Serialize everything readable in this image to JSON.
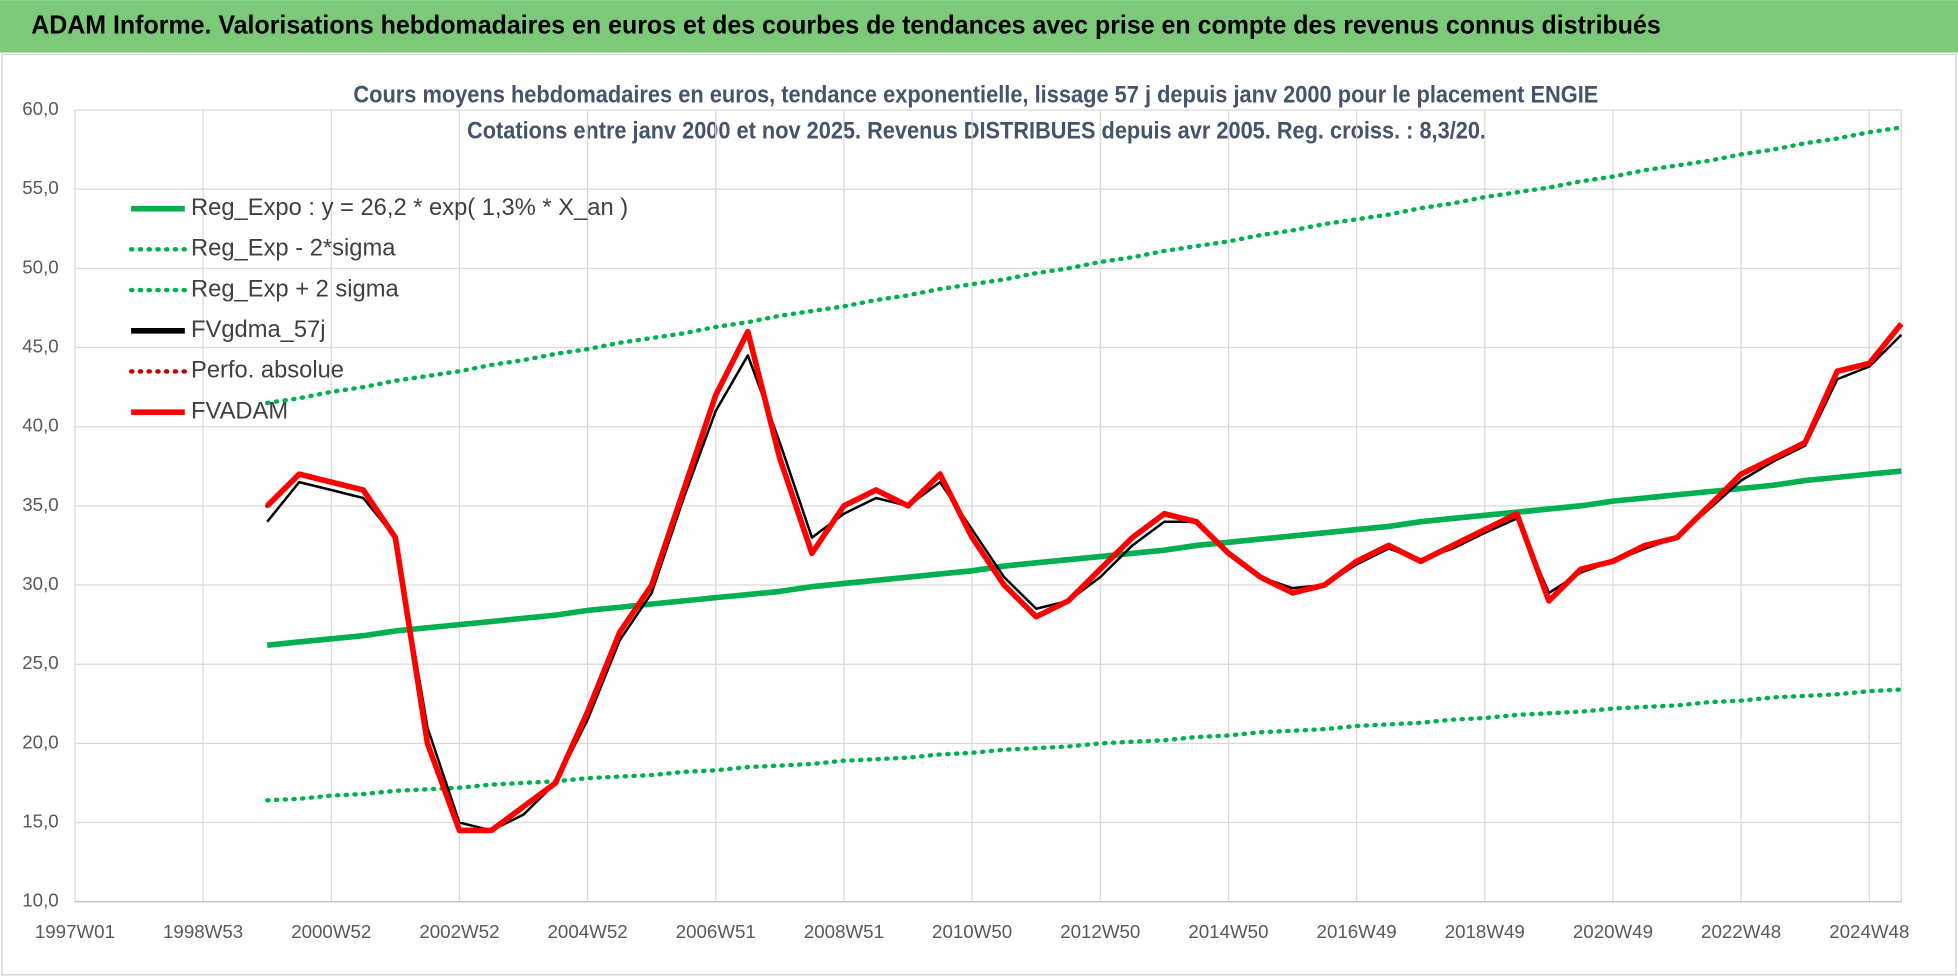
{
  "chart_data": {
    "type": "line",
    "title": "ADAM Informe. Valorisations hebdomadaires en euros et des courbes de tendances avec prise en compte des revenus connus distribués",
    "subtitle": [
      "Cours moyens hebdomadaires en euros, tendance exponentielle, lissage 57 j depuis janv 2000  pour le placement ENGIE",
      "Cotations entre janv 2000 et nov 2025. Revenus DISTRIBUES depuis avr 2005. Reg. croiss. : 8,3/20."
    ],
    "categories": [
      "1997W01",
      null,
      null,
      null,
      "1998W53",
      null,
      null,
      null,
      "2000W52",
      null,
      null,
      null,
      "2002W52",
      null,
      null,
      null,
      "2004W52",
      null,
      null,
      null,
      "2006W51",
      null,
      null,
      null,
      "2008W51",
      null,
      null,
      null,
      "2010W50",
      null,
      null,
      null,
      "2012W50",
      null,
      null,
      null,
      "2014W50",
      null,
      null,
      null,
      "2016W49",
      null,
      null,
      null,
      "2018W49",
      null,
      null,
      null,
      "2020W49",
      null,
      null,
      null,
      "2022W48",
      null,
      null,
      null,
      "2024W48",
      null
    ],
    "ylim": [
      10,
      60
    ],
    "yticks": [
      {
        "value": 10,
        "label": "10,0"
      },
      {
        "value": 15,
        "label": "15,0"
      },
      {
        "value": 20,
        "label": "20,0"
      },
      {
        "value": 25,
        "label": "25,0"
      },
      {
        "value": 30,
        "label": "30,0"
      },
      {
        "value": 35,
        "label": "35,0"
      },
      {
        "value": 40,
        "label": "40,0"
      },
      {
        "value": 45,
        "label": "45,0"
      },
      {
        "value": 50,
        "label": "50,0"
      },
      {
        "value": 55,
        "label": "55,0"
      },
      {
        "value": 60,
        "label": "60,0"
      }
    ],
    "grid": true,
    "legend": "top-left",
    "series": [
      {
        "name": "Reg_Expo : y = 26,2 * exp( 1,3% *  X_an )",
        "color": "#00b050",
        "style": "solid",
        "values": [
          null,
          null,
          null,
          null,
          null,
          null,
          26.2,
          26.4,
          26.6,
          26.8,
          27.1,
          27.3,
          27.5,
          27.7,
          27.9,
          28.1,
          28.4,
          28.6,
          28.8,
          29.0,
          29.2,
          29.4,
          29.6,
          29.9,
          30.1,
          30.3,
          30.5,
          30.7,
          30.9,
          31.2,
          31.4,
          31.6,
          31.8,
          32.0,
          32.2,
          32.5,
          32.7,
          32.9,
          33.1,
          33.3,
          33.5,
          33.7,
          34.0,
          34.2,
          34.4,
          34.6,
          34.8,
          35.0,
          35.3,
          35.5,
          35.7,
          35.9,
          36.1,
          36.3,
          36.6,
          36.8,
          37.0,
          37.2
        ]
      },
      {
        "name": "Reg_Exp - 2*sigma",
        "color": "#00b050",
        "style": "dotted",
        "values": [
          null,
          null,
          null,
          null,
          null,
          null,
          16.4,
          16.5,
          16.7,
          16.8,
          17.0,
          17.1,
          17.2,
          17.4,
          17.5,
          17.6,
          17.8,
          17.9,
          18.0,
          18.2,
          18.3,
          18.5,
          18.6,
          18.7,
          18.9,
          19.0,
          19.1,
          19.3,
          19.4,
          19.6,
          19.7,
          19.8,
          20.0,
          20.1,
          20.2,
          20.4,
          20.5,
          20.7,
          20.8,
          20.9,
          21.1,
          21.2,
          21.3,
          21.5,
          21.6,
          21.8,
          21.9,
          22.0,
          22.2,
          22.3,
          22.4,
          22.6,
          22.7,
          22.9,
          23.0,
          23.1,
          23.3,
          23.4
        ]
      },
      {
        "name": "Reg_Exp + 2 sigma",
        "color": "#00b050",
        "style": "dotted",
        "values": [
          null,
          null,
          null,
          null,
          null,
          null,
          41.5,
          41.8,
          42.2,
          42.5,
          42.9,
          43.2,
          43.5,
          43.9,
          44.2,
          44.6,
          44.9,
          45.3,
          45.6,
          45.9,
          46.3,
          46.6,
          47.0,
          47.3,
          47.6,
          48.0,
          48.3,
          48.7,
          49.0,
          49.3,
          49.7,
          50.0,
          50.4,
          50.7,
          51.1,
          51.4,
          51.7,
          52.1,
          52.4,
          52.8,
          53.1,
          53.4,
          53.8,
          54.1,
          54.5,
          54.8,
          55.1,
          55.5,
          55.8,
          56.2,
          56.5,
          56.8,
          57.2,
          57.5,
          57.9,
          58.2,
          58.6,
          58.9
        ]
      },
      {
        "name": "FVgdma_57j",
        "color": "#000000",
        "style": "solid",
        "values": [
          null,
          null,
          null,
          null,
          null,
          null,
          34,
          36.5,
          36,
          35.5,
          33,
          21,
          15,
          14.5,
          15.5,
          17.5,
          21.5,
          26.5,
          29.5,
          35.5,
          41,
          44.5,
          39,
          33,
          34.5,
          35.5,
          35,
          36.5,
          33.5,
          30.5,
          28.5,
          29,
          30.5,
          32.5,
          34,
          34,
          32,
          30.5,
          29.8,
          30,
          31.3,
          32.3,
          31.6,
          32.3,
          33.3,
          34.2,
          29.5,
          30.8,
          31.5,
          32.3,
          33,
          34.8,
          36.6,
          37.8,
          38.8,
          43,
          43.8,
          45.8
        ]
      },
      {
        "name": "Perfo. absolue",
        "color": "#c00000",
        "style": "dotted",
        "values": [
          null,
          null,
          null,
          null,
          null,
          null,
          35,
          37,
          36.5,
          36,
          33,
          20,
          14.5,
          14.5,
          16,
          17.5,
          22,
          27,
          30,
          36,
          42,
          46,
          38,
          32,
          35,
          36,
          35,
          37,
          33,
          30,
          28,
          29,
          31,
          33,
          34.5,
          34,
          32,
          30.5,
          29.5,
          30,
          31.5,
          32.5,
          31.5,
          32.5,
          33.5,
          34.5,
          29,
          31,
          31.5,
          32.5,
          33,
          35,
          37,
          38,
          39,
          43.5,
          44,
          46.5
        ]
      },
      {
        "name": "FVADAM",
        "color": "#ff0000",
        "style": "solid",
        "values": [
          null,
          null,
          null,
          null,
          null,
          null,
          35,
          37,
          36.5,
          36,
          33,
          20,
          14.5,
          14.5,
          16,
          17.5,
          22,
          27,
          30,
          36,
          42,
          46,
          38,
          32,
          35,
          36,
          35,
          37,
          33,
          30,
          28,
          29,
          31,
          33,
          34.5,
          34,
          32,
          30.5,
          29.5,
          30,
          31.5,
          32.5,
          31.5,
          32.5,
          33.5,
          34.5,
          29,
          31,
          31.5,
          32.5,
          33,
          35,
          37,
          38,
          39,
          43.5,
          44,
          46.5
        ]
      }
    ]
  }
}
